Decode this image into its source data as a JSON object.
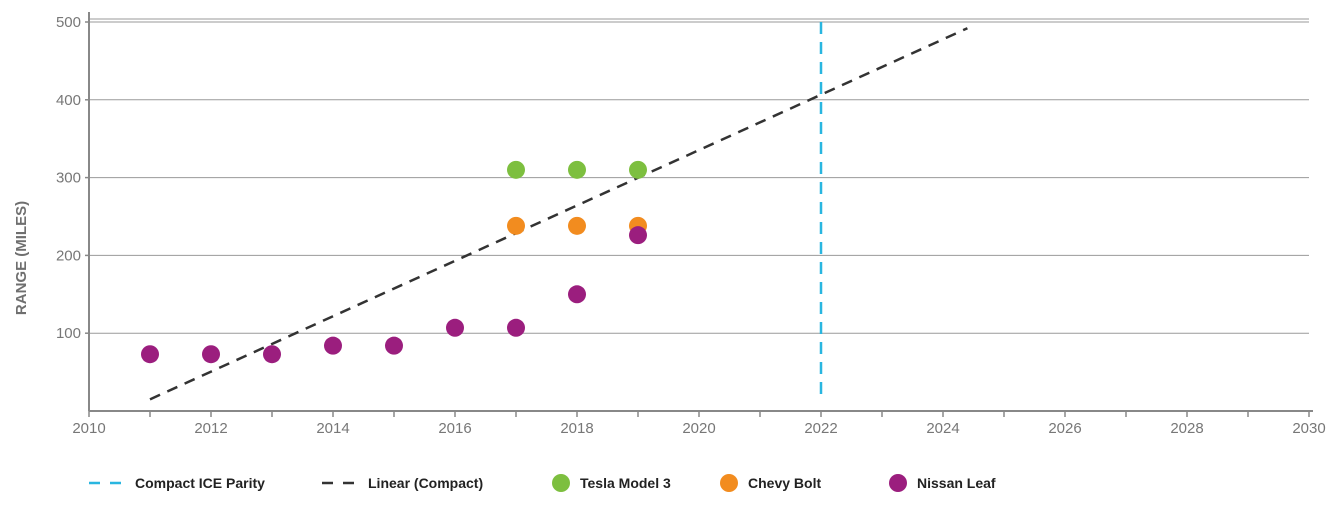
{
  "chart_data": {
    "type": "scatter",
    "title": "",
    "xlabel": "",
    "ylabel": "RANGE (MILES)",
    "xlim": [
      2010,
      2030
    ],
    "ylim": [
      0,
      500
    ],
    "x_ticks": [
      "2010",
      "2012",
      "2014",
      "2016",
      "2018",
      "2020",
      "2022",
      "2024",
      "2026",
      "2028",
      "2030"
    ],
    "y_ticks": [
      "100",
      "200",
      "300",
      "400",
      "500"
    ],
    "grid": "horizontal",
    "legend_position": "bottom",
    "series": [
      {
        "name": "Compact ICE Parity",
        "kind": "vline",
        "color": "#29b6e0",
        "x": 2022
      },
      {
        "name": "Linear (Compact)",
        "kind": "trendline",
        "color": "#333333",
        "points": [
          [
            2011,
            15
          ],
          [
            2024.4,
            492
          ]
        ]
      },
      {
        "name": "Tesla Model 3",
        "kind": "scatter",
        "color": "#7dbf3f",
        "points": [
          [
            2017,
            310
          ],
          [
            2018,
            310
          ],
          [
            2019,
            310
          ]
        ]
      },
      {
        "name": "Chevy Bolt",
        "kind": "scatter",
        "color": "#f28c1f",
        "points": [
          [
            2017,
            238
          ],
          [
            2018,
            238
          ],
          [
            2019,
            238
          ]
        ]
      },
      {
        "name": "Nissan Leaf",
        "kind": "scatter",
        "color": "#9b1e7e",
        "points": [
          [
            2011,
            73
          ],
          [
            2012,
            73
          ],
          [
            2013,
            73
          ],
          [
            2014,
            84
          ],
          [
            2015,
            84
          ],
          [
            2016,
            107
          ],
          [
            2017,
            107
          ],
          [
            2018,
            150
          ],
          [
            2019,
            226
          ]
        ]
      }
    ]
  }
}
